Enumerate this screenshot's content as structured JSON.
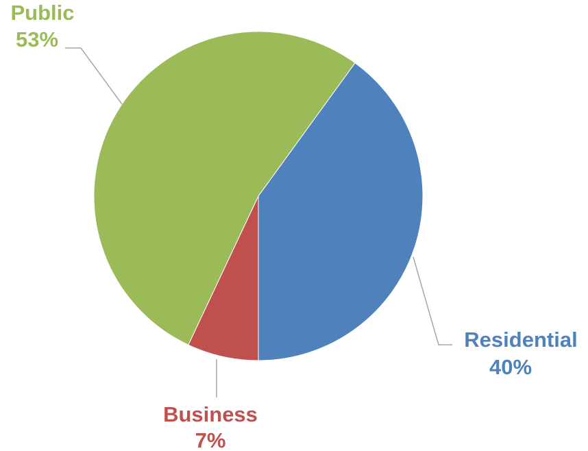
{
  "chart_data": {
    "type": "pie",
    "title": "",
    "slices": [
      {
        "label": "Residential",
        "percent_label": "40%",
        "value": 40,
        "color": "#4f81bd"
      },
      {
        "label": "Business",
        "percent_label": "7%",
        "value": 7,
        "color": "#c0504d"
      },
      {
        "label": "Public",
        "percent_label": "53%",
        "value": 53,
        "color": "#9bbb59"
      }
    ],
    "start_angle_deg": 36,
    "direction": "clockwise",
    "legend": "none",
    "data_labels": "outside with leader lines, colored to match slice"
  }
}
